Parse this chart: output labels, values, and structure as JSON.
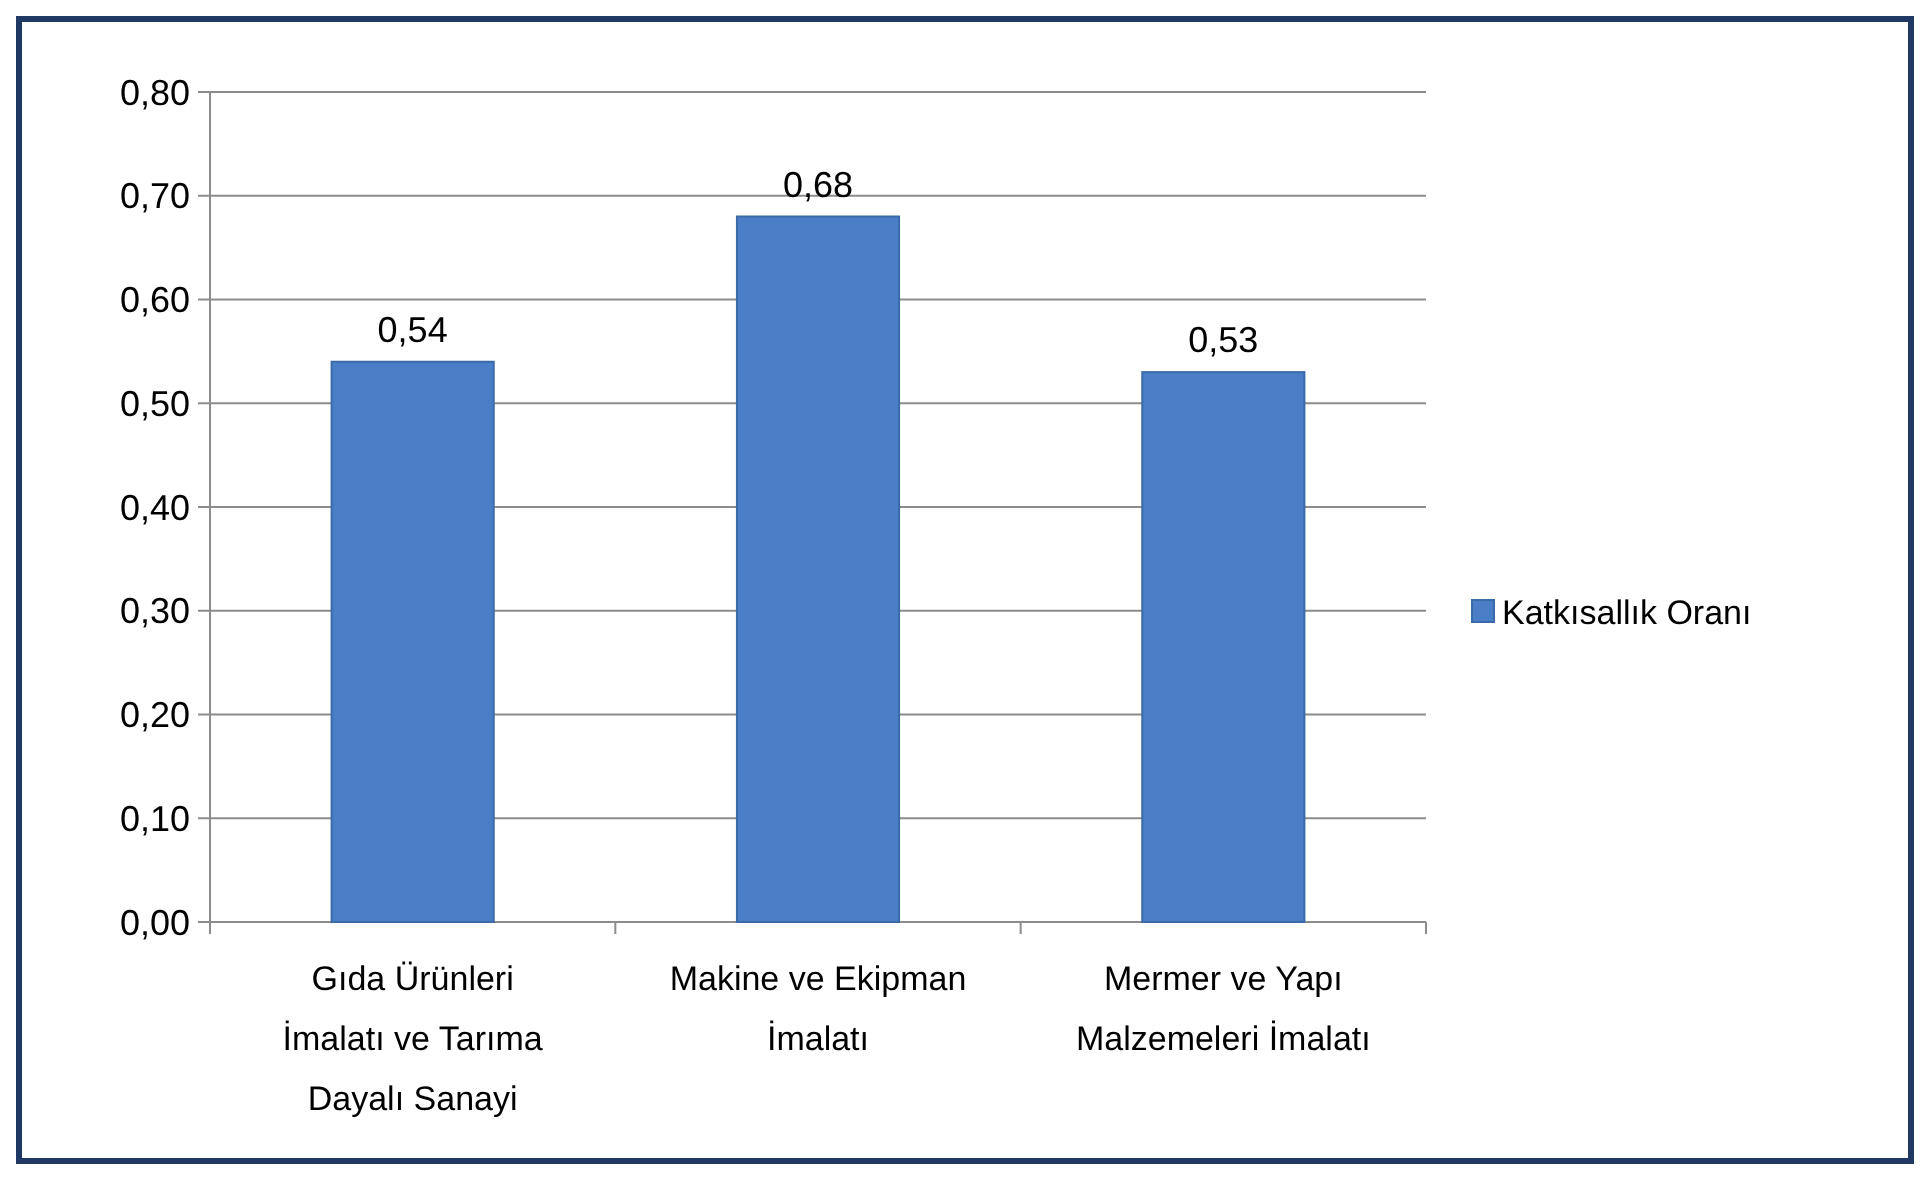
{
  "chart_data": {
    "type": "bar",
    "categories": [
      "Gıda Ürünleri İmalatı ve Tarıma Dayalı Sanayi",
      "Makine ve Ekipman İmalatı",
      "Mermer ve Yapı Malzemeleri İmalatı"
    ],
    "series": [
      {
        "name": "Katkısallık Oranı",
        "color": "#4a7ec6",
        "values": [
          0.54,
          0.68,
          0.53
        ],
        "value_labels": [
          "0,54",
          "0,68",
          "0,53"
        ]
      }
    ],
    "ylim": [
      0,
      0.8
    ],
    "yticks": [
      {
        "value": 0,
        "label": "0,00"
      },
      {
        "value": 0.1,
        "label": "0,10"
      },
      {
        "value": 0.2,
        "label": "0,20"
      },
      {
        "value": 0.3,
        "label": "0,30"
      },
      {
        "value": 0.4,
        "label": "0,40"
      },
      {
        "value": 0.5,
        "label": "0,50"
      },
      {
        "value": 0.6,
        "label": "0,60"
      },
      {
        "value": 0.7,
        "label": "0,70"
      },
      {
        "value": 0.8,
        "label": "0,80"
      }
    ],
    "grid": "y",
    "legend": "right"
  }
}
